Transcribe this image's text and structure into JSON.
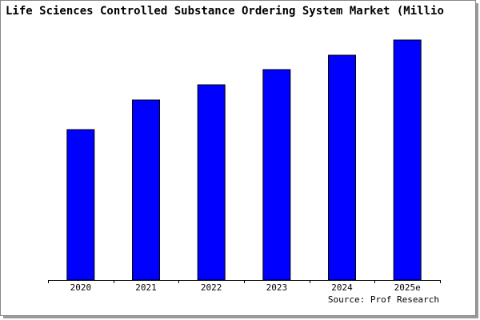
{
  "chart_data": {
    "type": "bar",
    "title": "Life Sciences Controlled Substance Ordering System Market (Millio",
    "categories": [
      "2020",
      "2021",
      "2022",
      "2023",
      "2024",
      "2025e"
    ],
    "values": [
      188,
      225,
      244,
      263,
      281,
      300
    ],
    "color": "#0000ff",
    "source": "Source: Prof Research"
  }
}
